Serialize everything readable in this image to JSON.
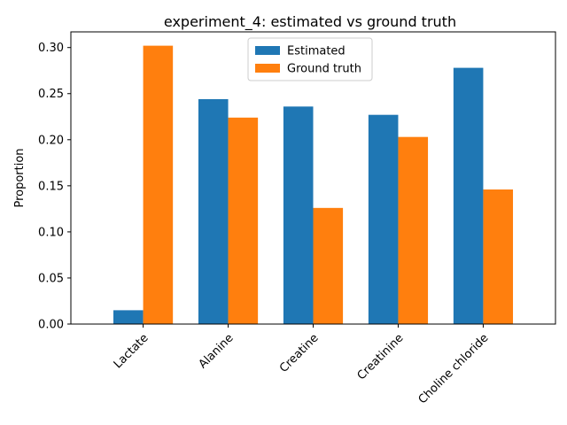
{
  "chart_data": {
    "type": "bar",
    "title": "experiment_4: estimated vs ground truth",
    "xlabel": "",
    "ylabel": "Proportion",
    "categories": [
      "Lactate",
      "Alanine",
      "Creatine",
      "Creatinine",
      "Choline chloride"
    ],
    "series": [
      {
        "name": "Estimated",
        "color": "#1f77b4",
        "values": [
          0.015,
          0.244,
          0.236,
          0.227,
          0.278
        ]
      },
      {
        "name": "Ground truth",
        "color": "#ff7f0e",
        "values": [
          0.302,
          0.224,
          0.126,
          0.203,
          0.146
        ]
      }
    ],
    "ylim": [
      0,
      0.317
    ],
    "yticks": [
      0.0,
      0.05,
      0.1,
      0.15,
      0.2,
      0.25,
      0.3
    ],
    "ytick_labels": [
      "0.00",
      "0.05",
      "0.10",
      "0.15",
      "0.20",
      "0.25",
      "0.30"
    ],
    "xtick_rotation": 45,
    "legend_position": "top-center",
    "grid": false
  }
}
